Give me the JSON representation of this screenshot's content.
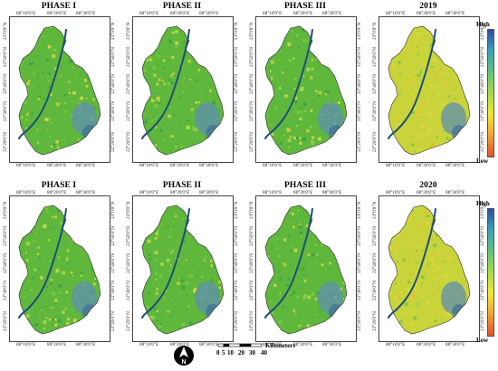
{
  "rows": [
    {
      "panels": [
        {
          "title": "PHASE I",
          "scheme": "green"
        },
        {
          "title": "PHASE II",
          "scheme": "green"
        },
        {
          "title": "PHASE III",
          "scheme": "green"
        },
        {
          "title": "2019",
          "scheme": "yellow"
        }
      ]
    },
    {
      "panels": [
        {
          "title": "PHASE I",
          "scheme": "green"
        },
        {
          "title": "PHASE II",
          "scheme": "green"
        },
        {
          "title": "PHASE III",
          "scheme": "green"
        },
        {
          "title": "2020",
          "scheme": "yellow"
        }
      ]
    }
  ],
  "axis_labels": {
    "top": [
      "88°10'0\"E",
      "88°20'0\"E",
      "88°30'0\"E"
    ],
    "bottom": [
      "88°10'0\"E",
      "88°20'0\"E",
      "88°30'0\"E"
    ],
    "left": [
      "23°0'0\"N",
      "22°50'0\"N",
      "22°40'0\"N",
      "22°30'0\"N",
      "22°20'0\"N"
    ],
    "right": [
      "23°0'0\"N",
      "22°50'0\"N",
      "22°40'0\"N",
      "22°30'0\"N",
      "22°20'0\"N"
    ]
  },
  "legend": {
    "high_label": "High",
    "low_label": "Low",
    "colors": [
      "#2c4ea0",
      "#3aa3b8",
      "#62c27a",
      "#a9d94a",
      "#f2e53a",
      "#f3a233",
      "#e0532a"
    ]
  },
  "scale_bar": {
    "ticks": [
      "0",
      "5",
      "10",
      "20",
      "30",
      "40"
    ],
    "unit": "Kilometers"
  },
  "north_arrow": {
    "label": "N"
  },
  "colors": {
    "map_green": "#5fb83c",
    "map_yellow": "#c9d43b",
    "river": "#1f4f78",
    "urban_blue": "#5f8fb0"
  }
}
